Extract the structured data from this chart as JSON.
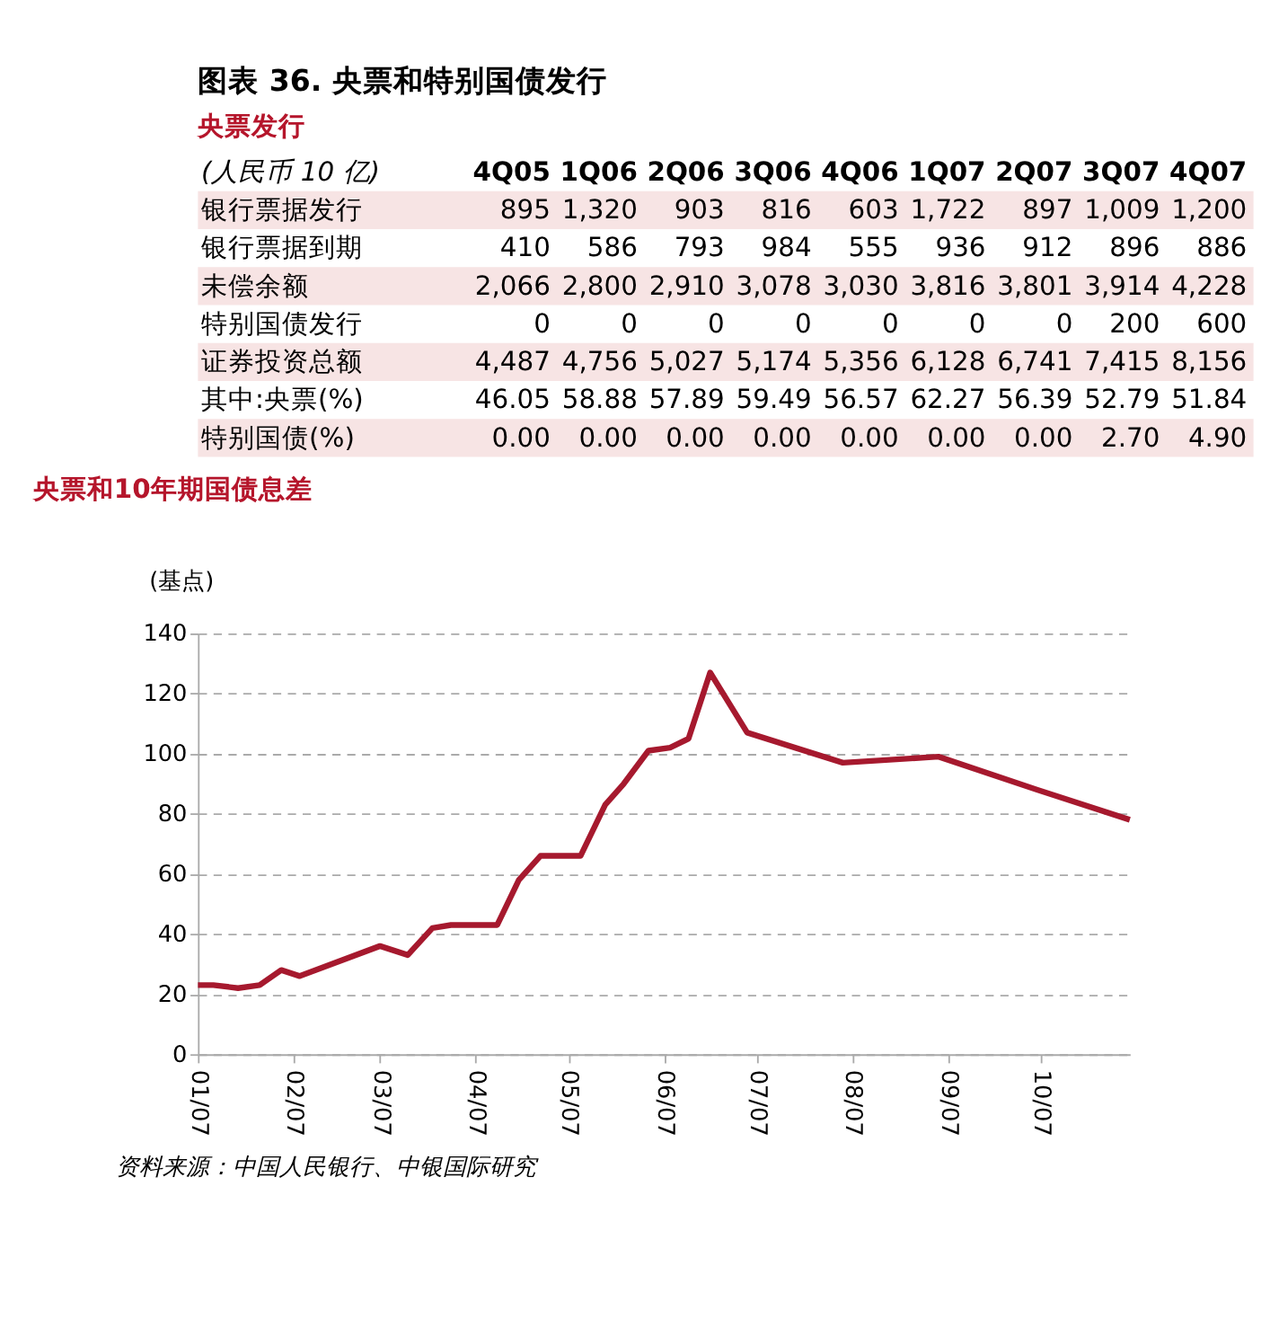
{
  "chart_data": [
    {
      "type": "other",
      "title": "图表 36. 央票和特别国债发行",
      "subtitle": "央票发行",
      "ylabel": "(人民币 10 亿)",
      "categories": [
        "4Q05",
        "1Q06",
        "2Q06",
        "3Q06",
        "4Q06",
        "1Q07",
        "2Q07",
        "3Q07",
        "4Q07"
      ],
      "y_categories": [
        "银行票据发行",
        "银行票据到期",
        "未偿余额",
        "特别国债发行",
        "证券投资总额",
        "其中:央票(%)",
        "特别国债(%)"
      ],
      "cell_labels": [
        [
          "895",
          "1,320",
          "903",
          "816",
          "603",
          "1,722",
          "897",
          "1,009",
          "1,200"
        ],
        [
          "410",
          "586",
          "793",
          "984",
          "555",
          "936",
          "912",
          "896",
          "886"
        ],
        [
          "2,066",
          "2,800",
          "2,910",
          "3,078",
          "3,030",
          "3,816",
          "3,801",
          "3,914",
          "4,228"
        ],
        [
          "0",
          "0",
          "0",
          "0",
          "0",
          "0",
          "0",
          "200",
          "600"
        ],
        [
          "4,487",
          "4,756",
          "5,027",
          "5,174",
          "5,356",
          "6,128",
          "6,741",
          "7,415",
          "8,156"
        ],
        [
          "46.05",
          "58.88",
          "57.89",
          "59.49",
          "56.57",
          "62.27",
          "56.39",
          "52.79",
          "51.84"
        ],
        [
          "0.00",
          "0.00",
          "0.00",
          "0.00",
          "0.00",
          "0.00",
          "0.00",
          "2.70",
          "4.90"
        ]
      ]
    },
    {
      "type": "line",
      "title": "央票和10年期国债息差",
      "ylabel": "(基点)",
      "x": [
        "2007-01-01",
        "2007-01-06",
        "2007-01-14",
        "2007-01-21",
        "2007-01-28",
        "2007-02-03",
        "2007-03-01",
        "2007-03-10",
        "2007-03-18",
        "2007-03-24",
        "2007-04-08",
        "2007-04-15",
        "2007-04-22",
        "2007-05-05",
        "2007-05-13",
        "2007-05-19",
        "2007-05-27",
        "2007-06-03",
        "2007-06-09",
        "2007-06-16",
        "2007-06-28",
        "2007-07-29",
        "2007-08-29",
        "2007-09-30",
        "2007-10-30"
      ],
      "series": [
        {
          "color": "#a6192e",
          "values": [
            23,
            23,
            22,
            23,
            28,
            26,
            36,
            33,
            42,
            43,
            43,
            58,
            66,
            66,
            83,
            90,
            101,
            102,
            105,
            127,
            107,
            97,
            99,
            88,
            78
          ]
        }
      ],
      "xlim": [
        "2007-01-01",
        "2007-10-30"
      ],
      "xticks": [
        {
          "value": "2007-01-01",
          "label": "01/07"
        },
        {
          "value": "2007-02-01",
          "label": "02/07"
        },
        {
          "value": "2007-03-01",
          "label": "03/07"
        },
        {
          "value": "2007-04-01",
          "label": "04/07"
        },
        {
          "value": "2007-05-01",
          "label": "05/07"
        },
        {
          "value": "2007-06-01",
          "label": "06/07"
        },
        {
          "value": "2007-07-01",
          "label": "07/07"
        },
        {
          "value": "2007-08-01",
          "label": "08/07"
        },
        {
          "value": "2007-09-01",
          "label": "09/07"
        },
        {
          "value": "2007-10-01",
          "label": "10/07"
        }
      ],
      "ylim": [
        0,
        140
      ],
      "yticks": [
        0,
        20,
        40,
        60,
        80,
        100,
        120,
        140
      ],
      "grid": "y",
      "legend": false,
      "marker": "none",
      "line_style": "solid",
      "annotations": [
        "资料来源：中国人民银行、中银国际研究"
      ]
    }
  ]
}
